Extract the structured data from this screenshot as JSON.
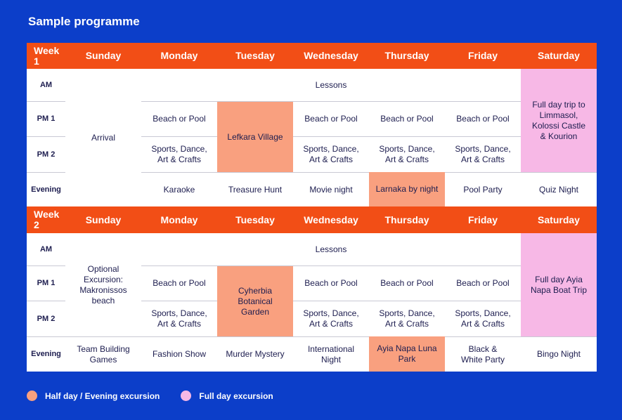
{
  "header": {
    "title": "Sample programme"
  },
  "weeks": [
    {
      "label": "Week 1",
      "days": [
        "Sunday",
        "Monday",
        "Tuesday",
        "Wednesday",
        "Thursday",
        "Friday",
        "Saturday"
      ],
      "rows": [
        "AM",
        "PM 1",
        "PM 2",
        "Evening"
      ],
      "cells": [
        "Arrival",
        "Lessons",
        "Full day trip to Limmasol, Kolossi Castle & Kourion",
        "Beach or Pool",
        "Lefkara Village",
        "Beach or Pool",
        "Beach or Pool",
        "Beach or Pool",
        "Sports, Dance, Art & Crafts",
        "Sports, Dance, Art & Crafts",
        "Sports, Dance, Art & Crafts",
        "Sports, Dance, Art & Crafts",
        "Karaoke",
        "Treasure Hunt",
        "Movie night",
        "Larnaka by night",
        "Pool Party",
        "Quiz Night"
      ]
    },
    {
      "label": "Week 2",
      "days": [
        "Sunday",
        "Monday",
        "Tuesday",
        "Wednesday",
        "Thursday",
        "Friday",
        "Saturday"
      ],
      "rows": [
        "AM",
        "PM 1",
        "PM 2",
        "Evening"
      ],
      "cells": [
        "Optional Excursion: Makronissos beach",
        "Lessons",
        "Full day Ayia Napa Boat Trip",
        "Beach or Pool",
        "Cyherbia Botanical Garden",
        "Beach or Pool",
        "Beach or Pool",
        "Beach or Pool",
        "Sports, Dance, Art & Crafts",
        "Sports, Dance, Art & Crafts",
        "Sports, Dance, Art & Crafts",
        "Sports, Dance, Art & Crafts",
        "Team Building Games",
        "Fashion Show",
        "Murder Mystery",
        "International Night",
        "Ayia Napa Luna Park",
        "Black & White Party",
        "Bingo Night"
      ]
    }
  ],
  "legend": [
    {
      "label": "Half day / Evening excursion",
      "color": "#f9a07f"
    },
    {
      "label": "Full day excursion",
      "color": "#f7b8e6"
    }
  ]
}
